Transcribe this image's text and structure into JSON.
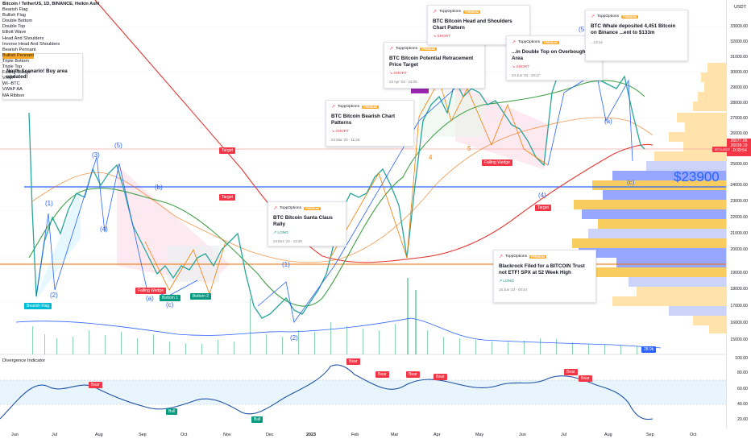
{
  "symbol_title": "Bitcoin / TetherUS, 1D, BINANCE, Heikin Ashi",
  "indicator_list": [
    "Bearish Flag",
    "Bullish Flag",
    "Double Bottom",
    "Double Top",
    "Elliott Wave",
    "Head And Shoulders",
    "Inverse Head And Shoulders",
    "Bearish Pennant",
    "Bullish Pennant",
    "Triple Bottom",
    "Triple Top",
    "Falling Wedge",
    "VRVP",
    "WI--BTC",
    "VWAP AA",
    "MA Ribbon"
  ],
  "scenario_text": "North Scenario! Buy area updated!",
  "cards": [
    {
      "brand": "ToppOptions",
      "badge": "PREMIUM",
      "title": "BTC Bitcoin Bearish Chart Patterns",
      "signal": "SHORT",
      "date": "04 Mar '23 - 11:26"
    },
    {
      "brand": "ToppOptions",
      "badge": "PREMIUM",
      "title": "BTC Bitcoin Potential Retracement Price Target",
      "signal": "SHORT",
      "date": "23 Apr '23 - 23:05"
    },
    {
      "brand": "ToppOptions",
      "badge": "PREMIUM",
      "title": "BTC Bitcoin Head and Shoulders Chart Pattern",
      "signal": "SHORT",
      "date": ""
    },
    {
      "brand": "ToppOptions",
      "badge": "PREMIUM",
      "title": "...in Double Top on Overbought Area",
      "signal": "SHORT",
      "date": "24 Jun '23 - 20:17"
    },
    {
      "brand": "ToppOptions",
      "badge": "PREMIUM",
      "title": "BTC Whale deposited 4,451 Bitcoin on Binance ...ent to $133m",
      "signal": "",
      "date": "...13:14"
    },
    {
      "brand": "ToppOptions",
      "badge": "PREMIUM",
      "title": "BTC Bitcoin Santa Claus Rally",
      "signal": "LONG",
      "date": "24 Dec '22 - 13:29"
    },
    {
      "brand": "ToppOptions",
      "badge": "PREMIUM",
      "title": "Blackrock Filed for a BITCOIN Trust not ETF! SPX at 52 Week High",
      "signal": "LONG",
      "date": "15 Jun '23 - 00:44"
    }
  ],
  "tags": {
    "bearish_flag": "Bearish Flag",
    "falling_wedge_1": "Falling Wedge",
    "falling_wedge_2": "Falling Wedge",
    "bottom_1": "Bottom 1",
    "bottom_2": "Bottom 2",
    "target_1": "Target",
    "target_2": "Target",
    "target_3": "Target"
  },
  "waves": {
    "w1": "(1)",
    "w2": "(2)",
    "w3": "(3)",
    "w4": "(4)",
    "w5": "(5)",
    "wb": "(b)",
    "wa": "(a)",
    "wc": "(c)",
    "w1b": "(1)",
    "w2b": "(2)",
    "w4b": "(4)",
    "wab": "(a)",
    "wcb": "(c)",
    "w5b": "(5",
    "n4": "4",
    "n5": "5"
  },
  "level_label": "$23900",
  "currency": "USDT",
  "price_ticks": [
    "33000.00",
    "32000.00",
    "31000.00",
    "30000.00",
    "29000.00",
    "28000.00",
    "27000.00",
    "26000.00",
    "25000.00",
    "24000.00",
    "23000.00",
    "22000.00",
    "21000.00",
    "20000.00",
    "19000.00",
    "18000.00",
    "17000.00",
    "16000.00",
    "15000.00"
  ],
  "current_price": {
    "label": "BTCUSDT",
    "value": "26077.06",
    "value2": "26039.19",
    "timer": "10:39:54"
  },
  "volume_badge": "28.9k",
  "time_ticks": [
    "Jun",
    "Jul",
    "Aug",
    "Sep",
    "Oct",
    "Nov",
    "Dec",
    "2023",
    "Feb",
    "Mar",
    "Apr",
    "May",
    "Jun",
    "Jul",
    "Aug",
    "Sep",
    "Oct"
  ],
  "divergence_title": "Divergence Indicator",
  "indicator_ticks": [
    "100.00",
    "80.00",
    "60.00",
    "40.00",
    "20.00",
    "0.00"
  ],
  "divergence_tags": {
    "bull": "Bull",
    "bear": "Bear"
  },
  "colors": {
    "accent": "#2962ff",
    "red": "#f23645",
    "green": "#089981",
    "ma_red": "#e53935",
    "ma_green": "#43a047",
    "vol": "#f9c74f"
  }
}
